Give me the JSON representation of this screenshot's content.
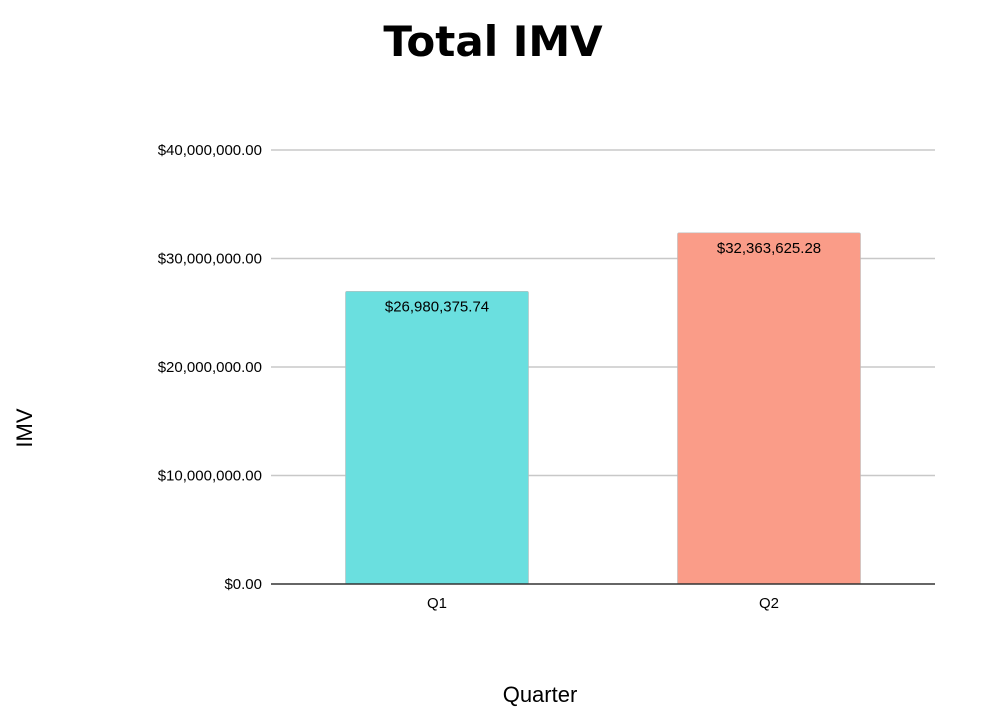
{
  "chart_data": {
    "type": "bar",
    "title": "Total IMV",
    "xlabel": "Quarter",
    "ylabel": "IMV",
    "categories": [
      "Q1",
      "Q2"
    ],
    "values": [
      26980375.74,
      32363625.28
    ],
    "data_labels": [
      "$26,980,375.74",
      "$32,363,625.28"
    ],
    "bar_colors": [
      "#6adfdf",
      "#fa9c88"
    ],
    "ylim": [
      0,
      40000000
    ],
    "y_ticks": [
      0,
      10000000,
      20000000,
      30000000,
      40000000
    ],
    "y_tick_labels": [
      "$0.00",
      "$10,000,000.00",
      "$20,000,000.00",
      "$30,000,000.00",
      "$40,000,000.00"
    ],
    "grid": true,
    "legend": "none",
    "gridline_color": "#c8c8c8",
    "axis_color": "#333333"
  }
}
